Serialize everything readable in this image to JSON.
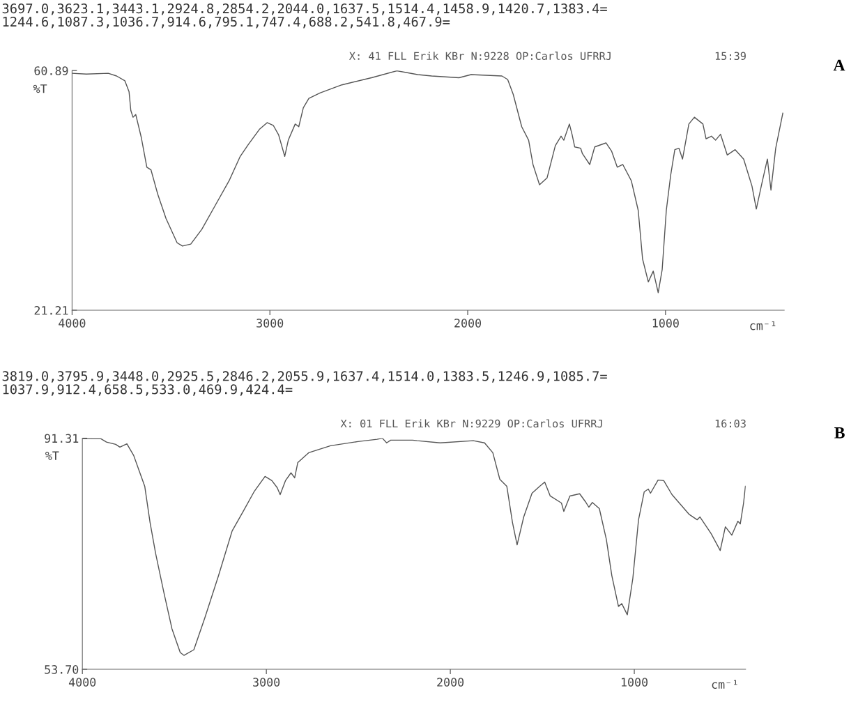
{
  "chart_data": [
    {
      "type": "line",
      "title": "3697.0,3623.1,3443.1,2924.8,2854.2,2044.0,1637.5,1514.4,1458.9,1420.7,1383.4=\n1244.6,1087.3,1036.7,914.6,795.1,747.4,688.2,541.8,467.9=",
      "subtitle": "X: 41 FLL Erik KBr N:9228 OP:Carlos UFRRJ",
      "annotations": [
        "15:39",
        "A"
      ],
      "xlabel": "cm⁻¹",
      "ylabel": "%T",
      "xlim": [
        4000,
        400
      ],
      "xticks": [
        4000,
        3000,
        2000,
        1000
      ],
      "ylim": [
        21.21,
        60.89
      ],
      "yticks": [
        21.21,
        60.89
      ],
      "grid": false,
      "legend": false,
      "marker": "none",
      "line_style": "solid",
      "series": [
        {
          "color": "#555555",
          "x": [
            4000,
            3928,
            3817,
            3775,
            3733,
            3712,
            3703,
            3692,
            3678,
            3650,
            3622,
            3601,
            3567,
            3525,
            3469,
            3442,
            3400,
            3344,
            3275,
            3206,
            3150,
            3108,
            3053,
            3014,
            2983,
            2956,
            2925,
            2907,
            2872,
            2854,
            2831,
            2803,
            2747,
            2636,
            2483,
            2358,
            2253,
            2182,
            2044,
            1983,
            1827,
            1798,
            1770,
            1727,
            1692,
            1670,
            1637,
            1599,
            1557,
            1528,
            1514,
            1486,
            1472,
            1459,
            1429,
            1420,
            1383,
            1358,
            1301,
            1273,
            1244,
            1216,
            1173,
            1138,
            1116,
            1087,
            1062,
            1037,
            1017,
            996,
            974,
            953,
            932,
            914,
            882,
            854,
            811,
            795,
            768,
            747,
            722,
            688,
            648,
            605,
            563,
            541,
            513,
            485,
            467,
            443,
            407
          ],
          "values": [
            60.44,
            60.31,
            60.44,
            59.99,
            59.19,
            57.4,
            54.27,
            53.16,
            53.6,
            49.8,
            44.89,
            44.44,
            40.42,
            36.39,
            32.37,
            31.83,
            32.15,
            34.61,
            38.63,
            42.65,
            46.68,
            48.69,
            51.15,
            52.26,
            51.82,
            50.25,
            46.68,
            49.36,
            52.04,
            51.59,
            54.72,
            56.29,
            57.18,
            58.52,
            59.73,
            60.85,
            60.22,
            59.99,
            59.7,
            60.22,
            59.99,
            59.41,
            56.96,
            51.59,
            49.36,
            45.33,
            41.98,
            43.1,
            48.46,
            50.03,
            49.36,
            52.04,
            50.25,
            48.24,
            48.02,
            47.12,
            45.33,
            48.24,
            48.91,
            47.57,
            44.89,
            45.33,
            42.65,
            37.74,
            29.69,
            25.89,
            27.68,
            24.1,
            27.9,
            37.74,
            43.55,
            47.79,
            48.02,
            46.23,
            52.04,
            53.16,
            52.04,
            49.58,
            50.03,
            49.36,
            50.34,
            46.91,
            47.79,
            46.23,
            41.76,
            37.96,
            42.2,
            46.23,
            41.09,
            48.02,
            53.83
          ]
        }
      ]
    },
    {
      "type": "line",
      "title": "3819.0,3795.9,3448.0,2925.5,2846.2,2055.9,1637.4,1514.0,1383.5,1246.9,1085.7=\n1037.9,912.4,658.5,533.0,469.9,424.4=",
      "subtitle": "X: 01 FLL Erik KBr N:9229 OP:Carlos UFRRJ",
      "annotations": [
        "16:03",
        "B"
      ],
      "xlabel": "cm⁻¹",
      "ylabel": "%T",
      "xlim": [
        4000,
        395
      ],
      "xticks": [
        4000,
        3000,
        2000,
        1000
      ],
      "ylim": [
        53.7,
        91.31
      ],
      "yticks": [
        {
          "value": 53.7,
          "label": "53.70"
        },
        91.31
      ],
      "grid": false,
      "legend": false,
      "marker": "none",
      "line_style": "solid",
      "series": [
        {
          "color": "#555555",
          "x": [
            4000,
            3944,
            3899,
            3869,
            3819,
            3796,
            3758,
            3721,
            3691,
            3661,
            3632,
            3602,
            3557,
            3513,
            3468,
            3448,
            3394,
            3334,
            3260,
            3186,
            3126,
            3067,
            3007,
            2970,
            2941,
            2925,
            2896,
            2866,
            2846,
            2829,
            2770,
            2651,
            2502,
            2398,
            2369,
            2346,
            2324,
            2205,
            2180,
            2055,
            1875,
            1814,
            1769,
            1731,
            1693,
            1662,
            1637,
            1601,
            1556,
            1514,
            1487,
            1457,
            1396,
            1383,
            1350,
            1297,
            1266,
            1247,
            1228,
            1190,
            1152,
            1122,
            1086,
            1068,
            1038,
            1008,
            977,
            946,
            924,
            912,
            871,
            840,
            795,
            703,
            658,
            643,
            582,
            533,
            505,
            470,
            437,
            424,
            406,
            396
          ],
          "values": [
            91.25,
            91.22,
            91.22,
            90.67,
            90.31,
            89.85,
            90.4,
            88.49,
            85.99,
            83.49,
            77.58,
            72.57,
            66.21,
            60.29,
            56.43,
            55.97,
            56.88,
            62.11,
            68.93,
            76.21,
            79.39,
            82.58,
            85.08,
            84.4,
            83.26,
            82.12,
            84.4,
            85.67,
            84.85,
            87.35,
            88.94,
            90.08,
            90.76,
            91.13,
            91.3,
            90.54,
            90.99,
            90.99,
            90.9,
            90.54,
            90.9,
            90.54,
            88.94,
            84.62,
            83.49,
            77.58,
            73.94,
            78.49,
            82.35,
            83.49,
            84.17,
            81.9,
            80.76,
            79.39,
            81.9,
            82.26,
            80.99,
            80.08,
            80.85,
            79.85,
            74.85,
            68.93,
            63.93,
            64.38,
            62.57,
            68.48,
            78.03,
            82.58,
            83.03,
            82.35,
            84.49,
            84.4,
            82.12,
            78.94,
            78.03,
            78.49,
            75.76,
            73.03,
            76.89,
            75.53,
            77.8,
            77.35,
            80.76,
            83.49
          ]
        }
      ]
    }
  ]
}
